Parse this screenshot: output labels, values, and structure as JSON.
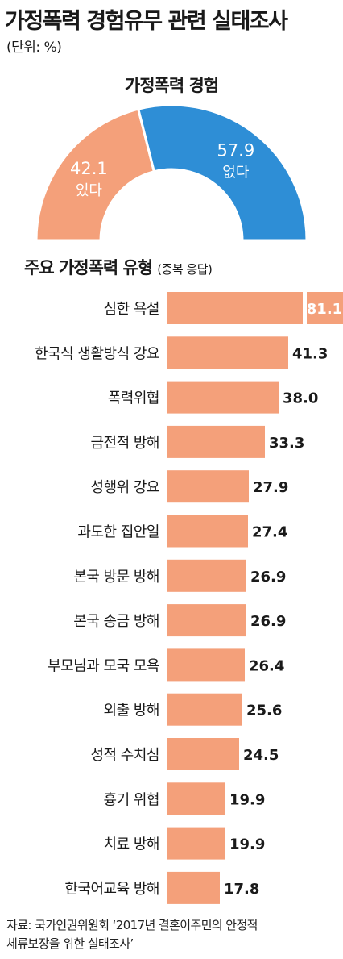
{
  "header": {
    "title": "가정폭력 경험유무 관련 실태조사",
    "unit": "(단위: %)"
  },
  "colors": {
    "orange": "#f4a07a",
    "blue": "#2e8ed6",
    "text": "#1a1a1a"
  },
  "chart_data": [
    {
      "type": "pie",
      "title": "가정폭력 경험",
      "style": "half-donut",
      "slices": [
        {
          "label": "있다",
          "value": 42.1,
          "color": "#f4a07a"
        },
        {
          "label": "없다",
          "value": 57.9,
          "color": "#2e8ed6"
        }
      ]
    },
    {
      "type": "bar",
      "orientation": "horizontal",
      "title": "주요 가정폭력 유형",
      "subtitle": "(중복 응답)",
      "categories": [
        "심한 욕설",
        "한국식 생활방식 강요",
        "폭력위협",
        "금전적 방해",
        "성행위 강요",
        "과도한 집안일",
        "본국 방문 방해",
        "본국 송금 방해",
        "부모님과 모국 모욕",
        "외출 방해",
        "성적 수치심",
        "흉기 위협",
        "치료 방해",
        "한국어교육 방해"
      ],
      "values": [
        81.1,
        41.3,
        38.0,
        33.3,
        27.9,
        27.4,
        26.9,
        26.9,
        26.4,
        25.6,
        24.5,
        19.9,
        19.9,
        17.8
      ],
      "value_labels": [
        "81.1",
        "41.3",
        "38.0",
        "33.3",
        "27.9",
        "27.4",
        "26.9",
        "26.9",
        "26.4",
        "25.6",
        "24.5",
        "19.9",
        "19.9",
        "17.8"
      ],
      "color": "#f4a07a",
      "break_first_bar": true
    }
  ],
  "source": {
    "line1": "자료: 국가인권위원회 ‘2017년 결혼이주민의 안정적",
    "line2": "체류보장을 위한 실태조사’"
  }
}
